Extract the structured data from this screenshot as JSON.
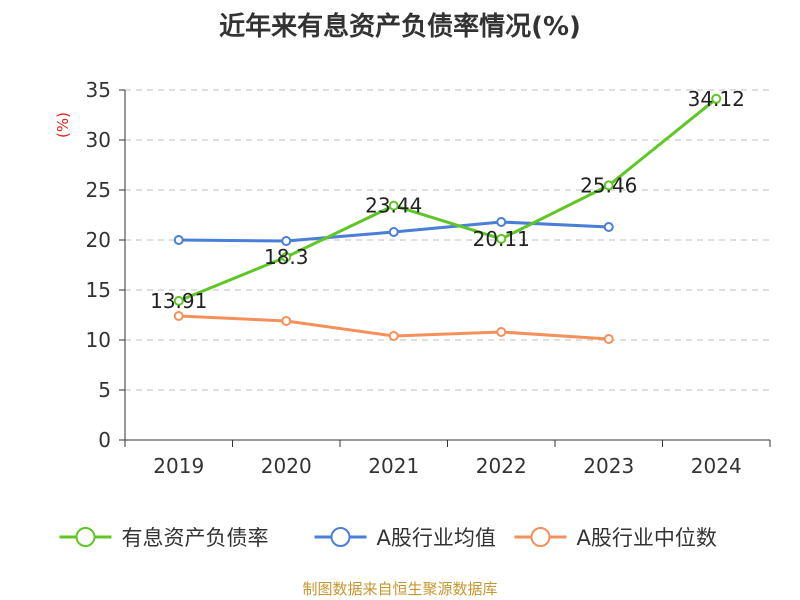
{
  "title": "近年来有息资产负债率情况(%)",
  "source": "制图数据来自恒生聚源数据库",
  "chart_data": {
    "type": "line",
    "categories": [
      "2019",
      "2020",
      "2021",
      "2022",
      "2023",
      "2024"
    ],
    "ylim": [
      0,
      35
    ],
    "yticks": [
      0,
      5,
      10,
      15,
      20,
      25,
      30,
      35
    ],
    "ylabel": "(%)",
    "xlabel": "",
    "grid": true,
    "legend_position": "bottom",
    "series": [
      {
        "name": "有息资产负债率",
        "color": "#5ec726",
        "values": [
          13.91,
          18.3,
          23.44,
          20.11,
          25.46,
          34.12
        ],
        "labels": [
          "13.91",
          "18.3",
          "23.44",
          "20.11",
          "25.46",
          "34.12"
        ]
      },
      {
        "name": "A股行业均值",
        "color": "#4a7fd8",
        "values": [
          20.0,
          19.9,
          20.8,
          21.8,
          21.3,
          null
        ]
      },
      {
        "name": "A股行业中位数",
        "color": "#f4915a",
        "values": [
          12.4,
          11.9,
          10.4,
          10.8,
          10.1,
          null
        ]
      }
    ]
  }
}
